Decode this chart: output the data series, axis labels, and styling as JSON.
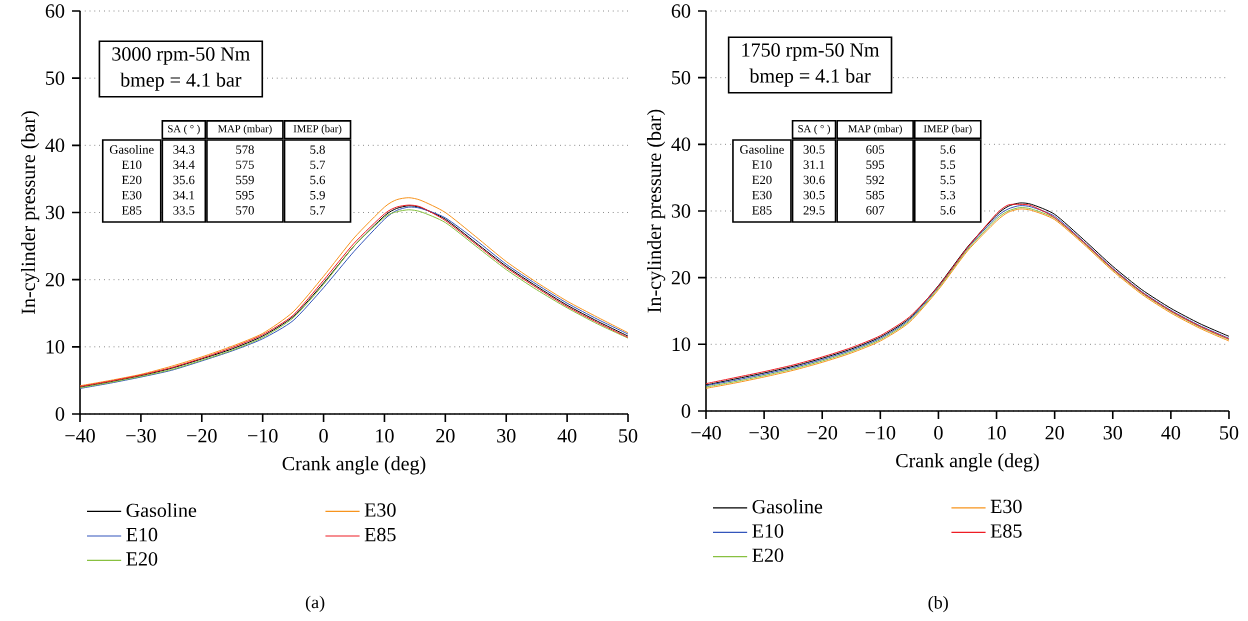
{
  "chart_data": [
    {
      "type": "line",
      "xlabel": "Crank angle (deg)",
      "ylabel": "In-cylinder pressure (bar)",
      "x": [
        -40,
        -35,
        -30,
        -25,
        -20,
        -15,
        -10,
        -5,
        0,
        5,
        10,
        12,
        14,
        16,
        20,
        25,
        30,
        35,
        40,
        45,
        50
      ],
      "series": [
        {
          "name": "Gasoline",
          "color": "#000000",
          "values": [
            4.0,
            4.8,
            5.7,
            6.8,
            8.2,
            9.7,
            11.6,
            14.5,
            19.5,
            25.0,
            29.5,
            30.6,
            31.0,
            30.7,
            29.0,
            25.5,
            22.0,
            19.0,
            16.2,
            13.8,
            11.6
          ]
        },
        {
          "name": "E10",
          "color": "#3355bb",
          "values": [
            3.8,
            4.6,
            5.5,
            6.5,
            7.9,
            9.4,
            11.2,
            13.9,
            18.8,
            24.2,
            29.0,
            30.3,
            30.8,
            30.6,
            29.2,
            25.9,
            22.3,
            19.3,
            16.5,
            14.1,
            11.9
          ]
        },
        {
          "name": "E20",
          "color": "#88c040",
          "values": [
            3.9,
            4.7,
            5.6,
            6.6,
            8.0,
            9.5,
            11.4,
            14.3,
            19.3,
            25.0,
            29.3,
            30.1,
            30.4,
            30.1,
            28.5,
            25.0,
            21.5,
            18.5,
            15.8,
            13.4,
            11.3
          ]
        },
        {
          "name": "E30",
          "color": "#f7941d",
          "values": [
            4.2,
            5.0,
            5.9,
            7.1,
            8.5,
            10.1,
            12.0,
            15.2,
            20.5,
            26.2,
            30.8,
            31.9,
            32.2,
            31.8,
            30.0,
            26.4,
            22.7,
            19.6,
            16.8,
            14.4,
            12.1
          ]
        },
        {
          "name": "E85",
          "color": "#ee1c24",
          "values": [
            4.1,
            4.9,
            5.8,
            6.9,
            8.3,
            9.9,
            11.8,
            14.7,
            19.9,
            25.4,
            29.8,
            30.8,
            31.1,
            30.8,
            28.8,
            25.3,
            21.8,
            18.8,
            16.0,
            13.6,
            11.4
          ]
        }
      ],
      "xlim": [
        -40,
        50
      ],
      "ylim": [
        0,
        60
      ],
      "xticks": [
        {
          "value": -40,
          "label": "−40"
        },
        {
          "value": -30,
          "label": "−30"
        },
        {
          "value": -20,
          "label": "−20"
        },
        {
          "value": -10,
          "label": "−10"
        },
        0,
        10,
        20,
        30,
        40,
        50
      ],
      "yticks": [
        0,
        10,
        20,
        30,
        40,
        50,
        60
      ],
      "grid": "y",
      "legend": "bottom",
      "annotations": [
        "3000 rpm-50 Nm",
        "bmep = 4.1 bar",
        "SA ( ° )",
        "MAP (mbar)",
        "IMEP (bar)",
        "Gasoline",
        "34.3",
        "578",
        "5.8",
        "E10",
        "34.4",
        "575",
        "5.7",
        "E20",
        "35.6",
        "559",
        "5.6",
        "E30",
        "34.1",
        "595",
        "5.9",
        "E85",
        "33.5",
        "570",
        "5.7",
        "(a)"
      ]
    },
    {
      "type": "line",
      "xlabel": "Crank angle (deg)",
      "ylabel": "In-cylinder pressure (bar)",
      "x": [
        -40,
        -35,
        -30,
        -25,
        -20,
        -15,
        -10,
        -5,
        0,
        5,
        10,
        12,
        14,
        16,
        20,
        25,
        30,
        35,
        40,
        45,
        50
      ],
      "series": [
        {
          "name": "Gasoline",
          "color": "#000000",
          "values": [
            3.9,
            4.8,
            5.7,
            6.7,
            7.9,
            9.3,
            11.1,
            13.9,
            18.8,
            24.6,
            29.4,
            30.7,
            31.2,
            31.0,
            29.5,
            25.7,
            21.7,
            18.2,
            15.4,
            13.1,
            11.2
          ]
        },
        {
          "name": "E10",
          "color": "#3355bb",
          "values": [
            3.8,
            4.6,
            5.5,
            6.5,
            7.7,
            9.1,
            10.9,
            13.7,
            18.6,
            24.4,
            29.1,
            30.3,
            30.8,
            30.6,
            29.2,
            25.4,
            21.4,
            17.9,
            15.1,
            12.8,
            10.9
          ]
        },
        {
          "name": "E20",
          "color": "#88c040",
          "values": [
            3.6,
            4.4,
            5.3,
            6.3,
            7.5,
            8.9,
            10.7,
            13.5,
            18.4,
            24.2,
            28.8,
            30.0,
            30.5,
            30.3,
            28.9,
            25.2,
            21.2,
            17.7,
            14.9,
            12.6,
            10.7
          ]
        },
        {
          "name": "E30",
          "color": "#f7941d",
          "values": [
            3.4,
            4.2,
            5.1,
            6.1,
            7.3,
            8.7,
            10.5,
            13.3,
            18.2,
            24.0,
            28.5,
            29.8,
            30.3,
            30.1,
            28.7,
            25.0,
            21.0,
            17.5,
            14.7,
            12.4,
            10.5
          ]
        },
        {
          "name": "E85",
          "color": "#ee1c24",
          "values": [
            4.1,
            5.0,
            5.9,
            6.9,
            8.1,
            9.5,
            11.3,
            14.1,
            18.7,
            24.5,
            29.6,
            30.9,
            31.0,
            30.8,
            29.0,
            25.3,
            21.3,
            17.8,
            15.0,
            12.7,
            10.8
          ]
        }
      ],
      "xlim": [
        -40,
        50
      ],
      "ylim": [
        0,
        60
      ],
      "xticks": [
        {
          "value": -40,
          "label": "−40"
        },
        {
          "value": -30,
          "label": "−30"
        },
        {
          "value": -20,
          "label": "−20"
        },
        {
          "value": -10,
          "label": "−10"
        },
        0,
        10,
        20,
        30,
        40,
        50
      ],
      "yticks": [
        0,
        10,
        20,
        30,
        40,
        50,
        60
      ],
      "grid": "y",
      "legend": "bottom",
      "annotations": [
        "1750 rpm-50 Nm",
        "bmep = 4.1 bar",
        "SA ( ° )",
        "MAP (mbar)",
        "IMEP (bar)",
        "Gasoline",
        "30.5",
        "605",
        "5.6",
        "E10",
        "31.1",
        "595",
        "5.5",
        "E20",
        "30.6",
        "592",
        "5.5",
        "E30",
        "30.5",
        "585",
        "5.3",
        "E85",
        "29.5",
        "607",
        "5.6",
        "(b)"
      ]
    }
  ]
}
